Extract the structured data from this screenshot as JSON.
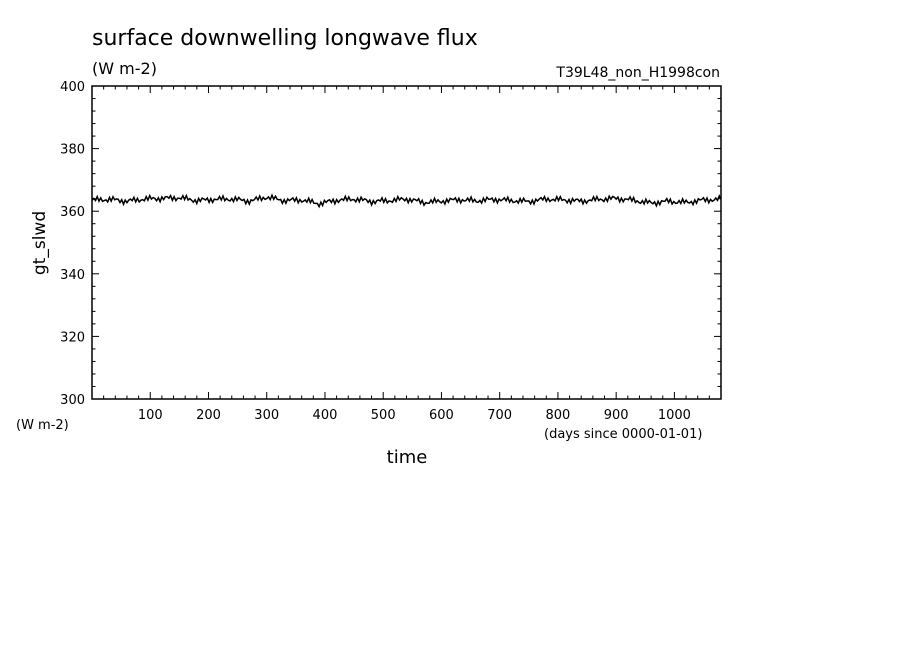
{
  "chart_data": {
    "type": "line",
    "title": "surface downwelling longwave flux",
    "units": "(W m-2)",
    "experiment": "T39L48_non_H1998con",
    "xlabel": "time",
    "x_units": "(days since 0000-01-01)",
    "ylabel": "gt_slwd",
    "y_units": "(W m-2)",
    "xlim": [
      0,
      1080
    ],
    "ylim": [
      300,
      400
    ],
    "x_ticks": [
      100,
      200,
      300,
      400,
      500,
      600,
      700,
      800,
      900,
      1000
    ],
    "y_ticks": [
      300,
      320,
      340,
      360,
      380,
      400
    ],
    "grid": false,
    "series": [
      {
        "x": [
          0,
          30,
          60,
          90,
          120,
          150,
          180,
          210,
          240,
          270,
          300,
          330,
          360,
          390,
          420,
          450,
          480,
          510,
          540,
          570,
          600,
          630,
          660,
          690,
          720,
          750,
          780,
          810,
          840,
          870,
          900,
          930,
          960,
          990,
          1020,
          1050,
          1080
        ],
        "values": [
          363.5,
          363.8,
          363.2,
          363.9,
          364.1,
          364.3,
          363.4,
          363.8,
          363.9,
          363.2,
          364.5,
          363.4,
          363.6,
          362.4,
          363.5,
          363.9,
          363.1,
          363.4,
          363.9,
          362.8,
          363.2,
          363.7,
          363.3,
          363.8,
          363.4,
          363.1,
          363.9,
          363.6,
          363.2,
          363.8,
          364.1,
          363.5,
          362.6,
          363.2,
          362.8,
          363.6,
          363.8
        ]
      }
    ]
  }
}
